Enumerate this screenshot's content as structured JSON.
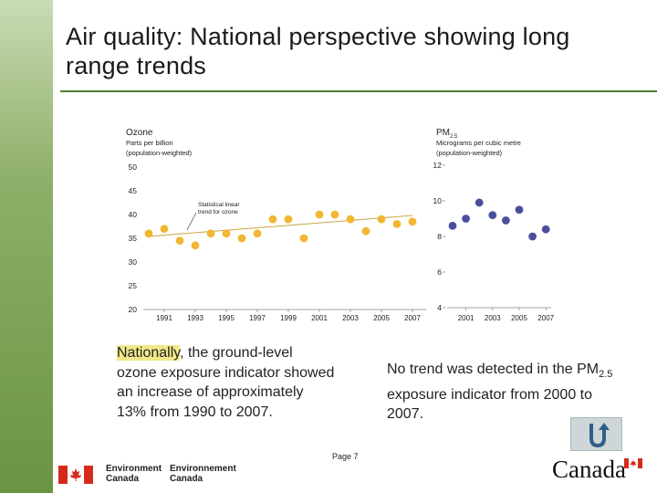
{
  "slide": {
    "title": "Air quality: National perspective showing long range trends",
    "page_label": "Page 7"
  },
  "text": {
    "left_highlight": "Nationally",
    "left_rest": ", the ground-level ozone exposure indicator showed an increase of approximately 13% from 1990 to 2007.",
    "right_pre": "No trend was detected in the PM",
    "right_sub": "2.5",
    "right_post": " exposure indicator from 2000 to 2007."
  },
  "footer": {
    "env_en_1": "Environment",
    "env_en_2": "Canada",
    "env_fr_1": "Environnement",
    "env_fr_2": "Canada",
    "wordmark": "Canada"
  },
  "colors": {
    "accent_green": "#6a9443",
    "ozone_dot": "#f2b632",
    "pm_dot": "#4a4f9c",
    "trend_line": "#c9a544"
  },
  "chart_data": [
    {
      "type": "scatter",
      "title": "Ozone",
      "ylabel_line1": "Parts per billion",
      "ylabel_line2": "(population-weighted)",
      "ylim": [
        20,
        50
      ],
      "yticks": [
        20,
        25,
        30,
        35,
        40,
        45,
        50
      ],
      "xticks": [
        1991,
        1993,
        1995,
        1997,
        1999,
        2001,
        2003,
        2005,
        2007
      ],
      "x": [
        1990,
        1991,
        1992,
        1993,
        1994,
        1995,
        1996,
        1997,
        1998,
        1999,
        2000,
        2001,
        2002,
        2003,
        2004,
        2005,
        2006,
        2007
      ],
      "values": [
        36.0,
        37.0,
        34.5,
        33.5,
        36.0,
        36.0,
        35.0,
        36.0,
        39.0,
        39.0,
        35.0,
        40.0,
        40.0,
        39.0,
        36.5,
        39.0,
        38.0,
        38.5
      ],
      "trend": {
        "label_line1": "Statistical linear",
        "label_line2": "trend for ozone",
        "start": [
          1990,
          35.4
        ],
        "end": [
          2007,
          39.8
        ]
      }
    },
    {
      "type": "scatter",
      "title": "PM",
      "title_sub": "2.5",
      "ylabel_line1": "Micrograms per cubic metre",
      "ylabel_line2": "(population-weighted)",
      "ylim": [
        4,
        12
      ],
      "yticks": [
        4,
        6,
        8,
        10,
        12
      ],
      "xticks": [
        2001,
        2003,
        2005,
        2007
      ],
      "x": [
        2000,
        2001,
        2002,
        2003,
        2004,
        2005,
        2006,
        2007
      ],
      "values": [
        8.6,
        9.0,
        9.9,
        9.2,
        8.9,
        9.5,
        8.0,
        8.4
      ]
    }
  ]
}
